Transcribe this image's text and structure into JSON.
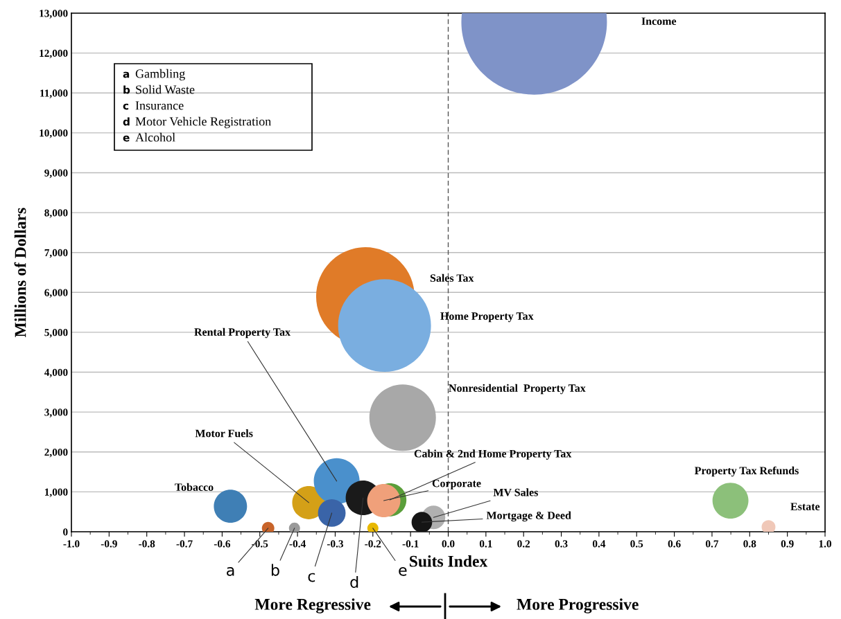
{
  "chart_data": {
    "type": "bubble",
    "xlabel": "Suits Index",
    "ylabel": "Millions of Dollars",
    "x": [
      0.228,
      -0.22,
      -0.169,
      -0.121,
      -0.578,
      -0.37,
      -0.296,
      -0.309,
      -0.226,
      -0.155,
      -0.171,
      -0.478,
      -0.408,
      -0.2,
      -0.039,
      -0.07,
      0.749,
      0.85
    ],
    "values": [
      12780,
      5900,
      5170,
      2860,
      640,
      730,
      1270,
      470,
      850,
      800,
      780,
      90,
      90,
      90,
      360,
      240,
      780,
      120
    ],
    "sizes": [
      1,
      0.457,
      0.407,
      0.209,
      0.052,
      0.052,
      0.099,
      0.036,
      0.057,
      0.052,
      0.052,
      0.0073,
      0.0058,
      0.0058,
      0.026,
      0.02,
      0.061,
      0.009
    ],
    "colors": [
      "#7f93c8",
      "#e07b28",
      "#7aaee0",
      "#a8a8a8",
      "#3f7fb5",
      "#d4a017",
      "#4a90cc",
      "#3a64a8",
      "#1a1a1a",
      "#5a9e3a",
      "#f0a07a",
      "#c8642a",
      "#9a9a9a",
      "#e8b800",
      "#b0b0b0",
      "#151515",
      "#8cc07a",
      "#f0c8b8"
    ],
    "xlim": [
      -1.0,
      1.0
    ],
    "xticks": [
      {
        "value": -1,
        "label": "-1.0"
      },
      -0.9,
      -0.8,
      -0.7,
      -0.6,
      -0.5,
      -0.4,
      -0.3,
      -0.2,
      -0.1,
      {
        "value": 0,
        "label": "0.0"
      },
      0.1,
      0.2,
      0.3,
      0.4,
      0.5,
      0.6,
      0.7,
      0.8,
      0.9,
      {
        "value": 1,
        "label": "1.0"
      }
    ],
    "ylim": [
      0,
      13000
    ],
    "yticks": [
      0,
      {
        "value": 1000,
        "label": "1,000"
      },
      {
        "value": 2000,
        "label": "2,000"
      },
      {
        "value": 3000,
        "label": "3,000"
      },
      {
        "value": 4000,
        "label": "4,000"
      },
      {
        "value": 5000,
        "label": "5,000"
      },
      {
        "value": 6000,
        "label": "6,000"
      },
      {
        "value": 7000,
        "label": "7,000"
      },
      {
        "value": 8000,
        "label": "8,000"
      },
      {
        "value": 9000,
        "label": "9,000"
      },
      {
        "value": 10000,
        "label": "10,000"
      },
      {
        "value": 11000,
        "label": "11,000"
      },
      {
        "value": 12000,
        "label": "12,000"
      },
      {
        "value": 13000,
        "label": "13,000"
      }
    ],
    "grid": "y",
    "ref_lines": [
      {
        "axis": "x",
        "value": 0,
        "color": "#555555",
        "line_style": "dashed"
      }
    ],
    "annotations": [
      {
        "text": "Motor Fuels",
        "x": -0.37,
        "y": 730
      },
      {
        "text": "Rental Property Tax",
        "x": -0.296,
        "y": 1270
      },
      {
        "text": "c",
        "x": -0.309,
        "y": 470
      },
      {
        "text": "d",
        "x": -0.226,
        "y": 850
      },
      {
        "text": "Cabin & 2nd Home Property Tax",
        "x": -0.155,
        "y": 800
      },
      {
        "text": "Corporate",
        "x": -0.171,
        "y": 780
      },
      {
        "text": "a",
        "x": -0.478,
        "y": 90
      },
      {
        "text": "b",
        "x": -0.408,
        "y": 90
      },
      {
        "text": "e",
        "x": -0.2,
        "y": 90
      },
      {
        "text": "MV Sales",
        "x": -0.039,
        "y": 360
      },
      {
        "text": "Mortgage & Deed",
        "x": -0.07,
        "y": 240
      },
      "Income",
      "Sales Tax",
      "Home Property Tax",
      "Nonresidential  Property Tax",
      "Tobacco",
      "Property Tax Refunds",
      "Estate",
      "a Gambling",
      "b Solid Waste",
      "c Insurance",
      "d Motor Vehicle Registration",
      "e Alcohol",
      "More Regressive",
      "More Progressive"
    ]
  }
}
